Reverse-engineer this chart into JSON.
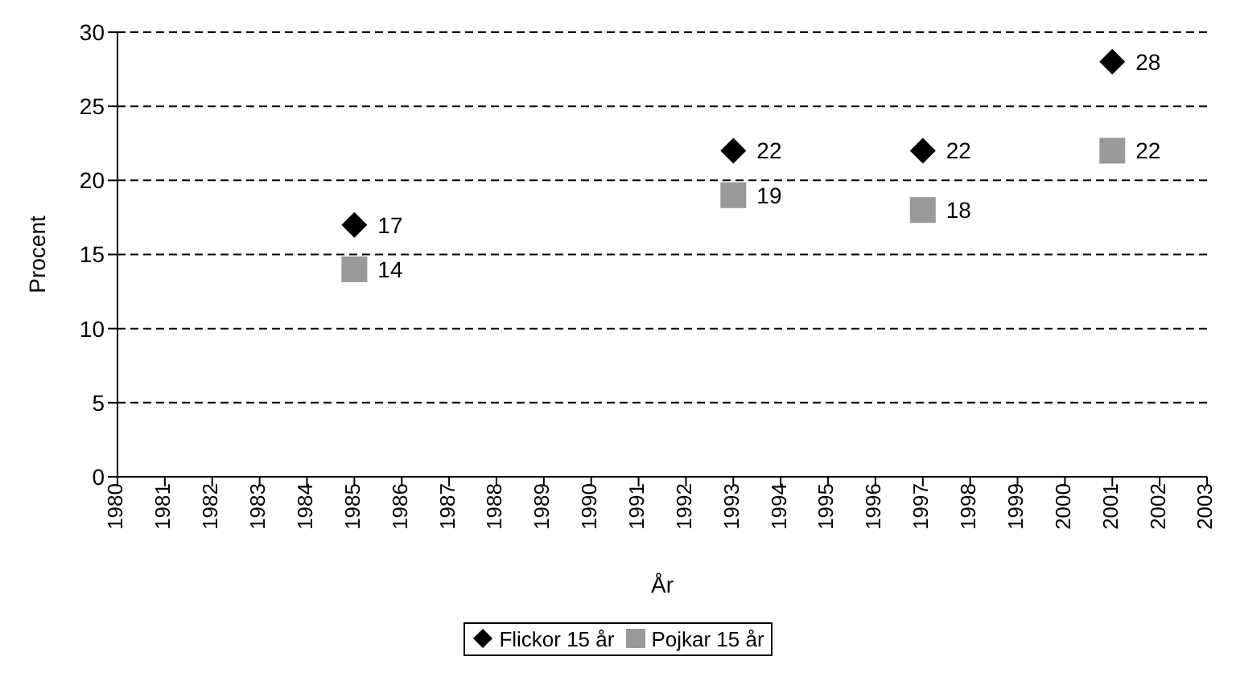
{
  "chart_data": {
    "type": "scatter",
    "xlabel": "År",
    "ylabel": "Procent",
    "x": [
      1985,
      1993,
      1997,
      2001
    ],
    "series": [
      {
        "name": "Flickor 15 år",
        "color": "#000000",
        "marker": "diamond",
        "values": [
          17,
          22,
          22,
          28
        ]
      },
      {
        "name": "Pojkar 15 år",
        "color": "#999999",
        "marker": "square",
        "values": [
          14,
          19,
          18,
          22
        ]
      }
    ],
    "xlim": [
      1980,
      2003
    ],
    "xticks": [
      1980,
      1981,
      1982,
      1983,
      1984,
      1985,
      1986,
      1987,
      1988,
      1989,
      1990,
      1991,
      1992,
      1993,
      1994,
      1995,
      1996,
      1997,
      1998,
      1999,
      2000,
      2001,
      2002,
      2003
    ],
    "ylim": [
      0,
      30
    ],
    "yticks": [
      0,
      5,
      10,
      15,
      20,
      25,
      30
    ],
    "grid": "y",
    "legend": "bottom",
    "data_labels": true
  }
}
